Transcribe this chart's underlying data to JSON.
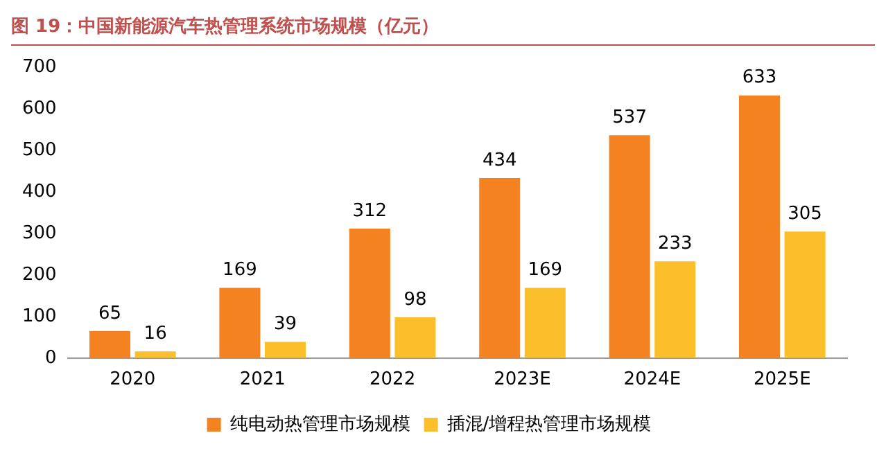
{
  "chart_data": {
    "type": "bar",
    "title": "图 19：中国新能源汽车热管理系统市场规模（亿元）",
    "categories": [
      "2020",
      "2021",
      "2022",
      "2023E",
      "2024E",
      "2025E"
    ],
    "series": [
      {
        "name": "纯电动热管理市场规模",
        "color": "#f58220",
        "values": [
          65,
          169,
          312,
          434,
          537,
          633
        ]
      },
      {
        "name": "插混/增程热管理市场规模",
        "color": "#fbbf2c",
        "values": [
          16,
          39,
          98,
          169,
          233,
          305
        ]
      }
    ],
    "ylim": [
      0,
      700
    ],
    "yticks": [
      0,
      100,
      200,
      300,
      400,
      500,
      600,
      700
    ],
    "grid": false,
    "legend": "bottom",
    "data_labels": true
  }
}
